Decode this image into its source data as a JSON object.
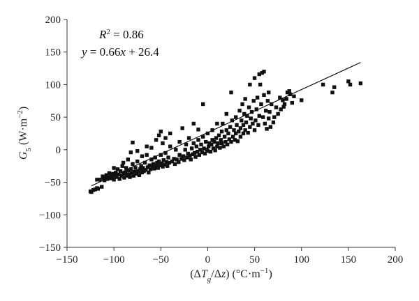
{
  "chart_data": {
    "type": "scatter",
    "title": "",
    "annotations": {
      "r2": {
        "symbol": "R",
        "sup": "2",
        "rest": " = 0.86"
      },
      "equation": {
        "y": "y",
        "mid": " = 0.66",
        "x": "x",
        "rest": " + 26.4"
      }
    },
    "xlabel": {
      "open": "(Δ",
      "T": "T",
      "sub": "g",
      "slash": "/Δ",
      "z": "z",
      "close": ")",
      "units": " (°C·m",
      "exp": "−1",
      "units_end": ")"
    },
    "ylabel": {
      "G": "G",
      "sub": "5",
      "units": " (W·m",
      "exp": "−2",
      "units_end": ")"
    },
    "xlim": [
      -150,
      200
    ],
    "ylim": [
      -150,
      200
    ],
    "xticks": [
      -150,
      -100,
      -50,
      0,
      50,
      100,
      150,
      200
    ],
    "yticks": [
      -150,
      -100,
      -50,
      0,
      50,
      100,
      150,
      200
    ],
    "xtick_labels": [
      "−150",
      "−100",
      "−50",
      "0",
      "50",
      "100",
      "150",
      "200"
    ],
    "ytick_labels": [
      "−150",
      "−100",
      "−50",
      "0",
      "50",
      "100",
      "150",
      "200"
    ],
    "grid": false,
    "fit_line": {
      "slope": 0.66,
      "intercept": 26.4,
      "x_range": [
        -124,
        163
      ]
    },
    "points": [
      [
        -125,
        -64
      ],
      [
        -124,
        -65
      ],
      [
        -122,
        -62
      ],
      [
        -120,
        -61
      ],
      [
        -118,
        -59
      ],
      [
        -118,
        -46
      ],
      [
        -117,
        -60
      ],
      [
        -115,
        -46
      ],
      [
        -113,
        -57
      ],
      [
        -112,
        -41
      ],
      [
        -111,
        -44
      ],
      [
        -110,
        -47
      ],
      [
        -109,
        -43
      ],
      [
        -108,
        -39
      ],
      [
        -107,
        -45
      ],
      [
        -106,
        -42
      ],
      [
        -105,
        -36
      ],
      [
        -104,
        -44
      ],
      [
        -103,
        -38
      ],
      [
        -102,
        -42
      ],
      [
        -101,
        -37
      ],
      [
        -100,
        -46
      ],
      [
        -100,
        -28
      ],
      [
        -99,
        -40
      ],
      [
        -98,
        -35
      ],
      [
        -97,
        -42
      ],
      [
        -96,
        -30
      ],
      [
        -95,
        -38
      ],
      [
        -94,
        -45
      ],
      [
        -93,
        -33
      ],
      [
        -92,
        -40
      ],
      [
        -91,
        -25
      ],
      [
        -90,
        -37
      ],
      [
        -90,
        -20
      ],
      [
        -89,
        -43
      ],
      [
        -88,
        -35
      ],
      [
        -87,
        -28
      ],
      [
        -86,
        -40
      ],
      [
        -85,
        -32
      ],
      [
        -85,
        -15
      ],
      [
        -84,
        -38
      ],
      [
        -83,
        -42
      ],
      [
        -82,
        -30
      ],
      [
        -82,
        -4
      ],
      [
        -81,
        -36
      ],
      [
        -80,
        -22
      ],
      [
        -80,
        11
      ],
      [
        -79,
        -40
      ],
      [
        -78,
        -34
      ],
      [
        -77,
        -28
      ],
      [
        -76,
        -37
      ],
      [
        -75,
        -18
      ],
      [
        -75,
        -2
      ],
      [
        -74,
        -33
      ],
      [
        -73,
        -39
      ],
      [
        -72,
        -30
      ],
      [
        -71,
        -25
      ],
      [
        -70,
        -35
      ],
      [
        -70,
        -10
      ],
      [
        -69,
        -28
      ],
      [
        -68,
        -33
      ],
      [
        -67,
        -20
      ],
      [
        -66,
        -31
      ],
      [
        -65,
        -8
      ],
      [
        -65,
        5
      ],
      [
        -64,
        -27
      ],
      [
        -63,
        -35
      ],
      [
        -62,
        -24
      ],
      [
        -61,
        -30
      ],
      [
        -60,
        -15
      ],
      [
        -60,
        3
      ],
      [
        -59,
        -27
      ],
      [
        -58,
        -22
      ],
      [
        -57,
        -29
      ],
      [
        -56,
        -12
      ],
      [
        -55,
        -25
      ],
      [
        -55,
        15
      ],
      [
        -54,
        -20
      ],
      [
        -53,
        -28
      ],
      [
        -52,
        -18
      ],
      [
        -52,
        22
      ],
      [
        -51,
        -24
      ],
      [
        -50,
        -8
      ],
      [
        -50,
        28
      ],
      [
        -49,
        -21
      ],
      [
        -48,
        -26
      ],
      [
        -48,
        10
      ],
      [
        -47,
        -16
      ],
      [
        -46,
        -23
      ],
      [
        -45,
        -5
      ],
      [
        -45,
        18
      ],
      [
        -44,
        -19
      ],
      [
        -43,
        -25
      ],
      [
        -42,
        -12
      ],
      [
        -41,
        -20
      ],
      [
        -40,
        5
      ],
      [
        -40,
        25
      ],
      [
        -38,
        -18
      ],
      [
        -36,
        -14
      ],
      [
        -35,
        -22
      ],
      [
        -34,
        0
      ],
      [
        -33,
        -15
      ],
      [
        -31,
        -19
      ],
      [
        -30,
        -8
      ],
      [
        -30,
        12
      ],
      [
        -28,
        -14
      ],
      [
        -27,
        33
      ],
      [
        -26,
        -10
      ],
      [
        -25,
        -16
      ],
      [
        -24,
        0
      ],
      [
        -23,
        8
      ],
      [
        -22,
        -12
      ],
      [
        -21,
        -6
      ],
      [
        -20,
        18
      ],
      [
        -19,
        -9
      ],
      [
        -18,
        -15
      ],
      [
        -17,
        2
      ],
      [
        -16,
        -7
      ],
      [
        -15,
        10
      ],
      [
        -15,
        40
      ],
      [
        -14,
        -5
      ],
      [
        -13,
        -11
      ],
      [
        -12,
        5
      ],
      [
        -11,
        -3
      ],
      [
        -10,
        15
      ],
      [
        -10,
        31
      ],
      [
        -9,
        -8
      ],
      [
        -8,
        0
      ],
      [
        -7,
        8
      ],
      [
        -6,
        -4
      ],
      [
        -5,
        20
      ],
      [
        -5,
        70
      ],
      [
        -4,
        2
      ],
      [
        -3,
        -6
      ],
      [
        -2,
        12
      ],
      [
        -1,
        0
      ],
      [
        0,
        25
      ],
      [
        0,
        -2
      ],
      [
        1,
        5
      ],
      [
        2,
        10
      ],
      [
        3,
        -3
      ],
      [
        4,
        8
      ],
      [
        5,
        30
      ],
      [
        5,
        15
      ],
      [
        6,
        2
      ],
      [
        7,
        12
      ],
      [
        8,
        -1
      ],
      [
        9,
        18
      ],
      [
        10,
        5
      ],
      [
        10,
        40
      ],
      [
        11,
        10
      ],
      [
        12,
        22
      ],
      [
        13,
        3
      ],
      [
        14,
        15
      ],
      [
        15,
        28
      ],
      [
        15,
        10
      ],
      [
        16,
        40
      ],
      [
        17,
        5
      ],
      [
        18,
        20
      ],
      [
        19,
        12
      ],
      [
        20,
        55
      ],
      [
        20,
        30
      ],
      [
        21,
        8
      ],
      [
        22,
        25
      ],
      [
        23,
        16
      ],
      [
        24,
        35
      ],
      [
        25,
        12
      ],
      [
        25,
        88
      ],
      [
        26,
        45
      ],
      [
        27,
        20
      ],
      [
        28,
        30
      ],
      [
        29,
        15
      ],
      [
        30,
        50
      ],
      [
        30,
        25
      ],
      [
        31,
        38
      ],
      [
        32,
        13
      ],
      [
        33,
        28
      ],
      [
        34,
        60
      ],
      [
        35,
        20
      ],
      [
        35,
        33
      ],
      [
        36,
        45
      ],
      [
        37,
        70
      ],
      [
        38,
        25
      ],
      [
        38,
        38
      ],
      [
        39,
        55
      ],
      [
        40,
        30
      ],
      [
        40,
        78
      ],
      [
        41,
        42
      ],
      [
        42,
        52
      ],
      [
        43,
        26
      ],
      [
        44,
        65
      ],
      [
        45,
        35
      ],
      [
        45,
        100
      ],
      [
        46,
        48
      ],
      [
        47,
        58
      ],
      [
        48,
        40
      ],
      [
        49,
        75
      ],
      [
        50,
        30
      ],
      [
        50,
        110
      ],
      [
        51,
        45
      ],
      [
        52,
        62
      ],
      [
        53,
        80
      ],
      [
        54,
        38
      ],
      [
        55,
        52
      ],
      [
        55,
        116
      ],
      [
        56,
        100
      ],
      [
        57,
        70
      ],
      [
        58,
        118
      ],
      [
        59,
        50
      ],
      [
        60,
        120
      ],
      [
        60,
        84
      ],
      [
        61,
        40
      ],
      [
        62,
        60
      ],
      [
        63,
        32
      ],
      [
        64,
        75
      ],
      [
        65,
        88
      ],
      [
        65,
        48
      ],
      [
        66,
        58
      ],
      [
        67,
        35
      ],
      [
        68,
        70
      ],
      [
        70,
        42
      ],
      [
        71,
        50
      ],
      [
        73,
        65
      ],
      [
        75,
        55
      ],
      [
        77,
        80
      ],
      [
        78,
        62
      ],
      [
        80,
        76
      ],
      [
        81,
        66
      ],
      [
        82,
        70
      ],
      [
        84,
        78
      ],
      [
        85,
        88
      ],
      [
        87,
        90
      ],
      [
        88,
        85
      ],
      [
        90,
        72
      ],
      [
        92,
        82
      ],
      [
        100,
        76
      ],
      [
        123,
        100
      ],
      [
        133,
        88
      ],
      [
        135,
        96
      ],
      [
        150,
        105
      ],
      [
        152,
        100
      ],
      [
        163,
        102
      ]
    ]
  }
}
